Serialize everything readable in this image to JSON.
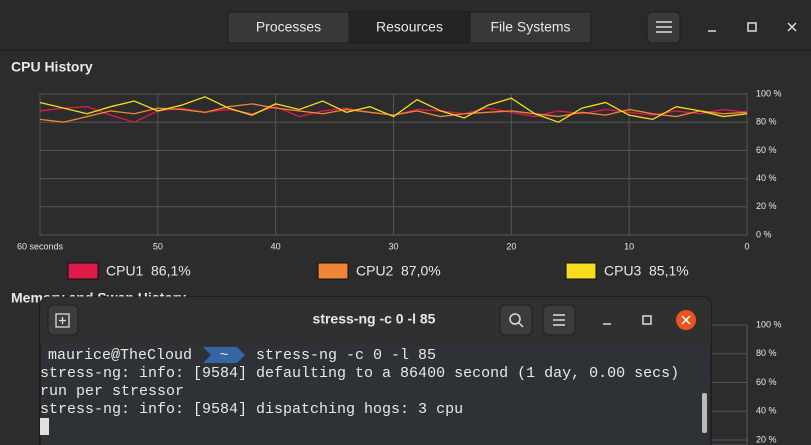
{
  "window": {
    "tabs": [
      "Processes",
      "Resources",
      "File Systems"
    ],
    "active_tab": 1
  },
  "cpu_history": {
    "title": "CPU History",
    "x": [
      60,
      58,
      56,
      54,
      52,
      50,
      48,
      46,
      44,
      42,
      40,
      38,
      36,
      34,
      32,
      30,
      28,
      26,
      24,
      22,
      20,
      18,
      16,
      14,
      12,
      10,
      8,
      6,
      4,
      2,
      0
    ],
    "xlim": [
      60,
      0
    ],
    "xticks": [
      {
        "value": 60,
        "label": "60 seconds"
      },
      50,
      40,
      30,
      20,
      10,
      0
    ],
    "ylim": [
      0,
      100
    ],
    "yticks": [
      {
        "value": 100,
        "label": "100 %"
      },
      {
        "value": 80,
        "label": "80 %"
      },
      {
        "value": 60,
        "label": "60 %"
      },
      {
        "value": 40,
        "label": "40 %"
      },
      {
        "value": 20,
        "label": "20 %"
      },
      {
        "value": 0,
        "label": "0 %"
      }
    ],
    "series": [
      {
        "name": "CPU1",
        "usage": "86,1%",
        "color": "#e0194b",
        "values": [
          88,
          90,
          91,
          85,
          80,
          88,
          90,
          87,
          89,
          86,
          91,
          84,
          88,
          90,
          87,
          85,
          89,
          88,
          86,
          90,
          87,
          84,
          88,
          86,
          89,
          87,
          85,
          88,
          86,
          89,
          87
        ]
      },
      {
        "name": "CPU2",
        "usage": "87,0%",
        "color": "#f08535",
        "values": [
          82,
          80,
          84,
          88,
          86,
          90,
          89,
          87,
          91,
          93,
          90,
          88,
          86,
          89,
          87,
          85,
          88,
          84,
          86,
          87,
          88,
          86,
          84,
          87,
          85,
          89,
          86,
          84,
          88,
          86,
          87
        ]
      },
      {
        "name": "CPU3",
        "usage": "85,1%",
        "color": "#f5dc1e",
        "values": [
          94,
          90,
          86,
          91,
          95,
          88,
          92,
          98,
          90,
          85,
          93,
          89,
          95,
          87,
          91,
          84,
          96,
          88,
          83,
          92,
          97,
          86,
          80,
          90,
          94,
          85,
          82,
          91,
          88,
          84,
          86
        ]
      }
    ]
  },
  "memory_history": {
    "title": "Memory and Swap History",
    "ylim": [
      0,
      100
    ],
    "yticks": [
      {
        "value": 100,
        "label": "100 %"
      },
      {
        "value": 80,
        "label": "80 %"
      },
      {
        "value": 60,
        "label": "60 %"
      },
      {
        "value": 40,
        "label": "40 %"
      },
      {
        "value": 20,
        "label": "20 %"
      }
    ]
  },
  "terminal": {
    "title": "stress-ng -c 0 -l 85",
    "user": "maurice@TheCloud",
    "dir": "~",
    "command": "stress-ng -c 0 -l 85",
    "output": [
      "stress-ng: info:  [9584] defaulting to a 86400 second (1 day, 0.00 secs)",
      "run per stressor",
      "stress-ng: info:  [9584] dispatching hogs: 3 cpu"
    ]
  }
}
